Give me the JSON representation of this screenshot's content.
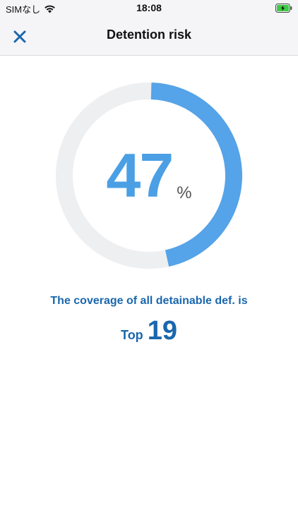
{
  "status_bar": {
    "carrier": "SIMなし",
    "time": "18:08"
  },
  "nav": {
    "title": "Detention risk",
    "close_icon": "close-icon"
  },
  "gauge": {
    "value": "47",
    "unit": "%",
    "percent": 47,
    "fill_color": "#55a3e8",
    "track_color": "#eeeff1"
  },
  "coverage": {
    "text": "The coverage of all detainable def. is",
    "rank_prefix": "Top",
    "rank_value": "19"
  },
  "colors": {
    "accent": "#1a67ad",
    "gauge_text": "#4b9fe4"
  }
}
